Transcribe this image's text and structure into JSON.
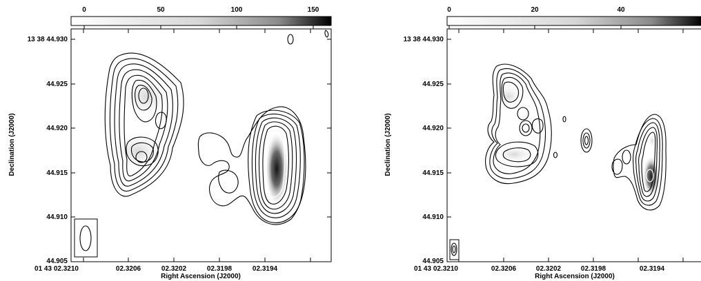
{
  "chart_data": [
    {
      "type": "heatmap",
      "xlabel": "Right Ascension (J2000)",
      "ylabel": "Declination (J2000)",
      "x_ticks": [
        "01 43 02.3210",
        "02.3206",
        "02.3202",
        "02.3198",
        "02.3194"
      ],
      "y_ticks": [
        "44.905",
        "44.910",
        "44.915",
        "44.920",
        "44.925",
        "13 38 44.930"
      ],
      "colorbar_ticks": [
        "0",
        "50",
        "100",
        "150"
      ],
      "colorbar_range": [
        0,
        160
      ],
      "colormap": "grayscale",
      "contours": true
    },
    {
      "type": "heatmap",
      "xlabel": "Right Ascension (J2000)",
      "ylabel": "Declination (J2000)",
      "x_ticks": [
        "01 43 02.3210",
        "02.3206",
        "02.3202",
        "02.3198",
        "02.3194"
      ],
      "y_ticks": [
        "44.905",
        "44.910",
        "44.915",
        "44.920",
        "44.925",
        "13 38 44.930"
      ],
      "colorbar_ticks": [
        "0",
        "20",
        "40"
      ],
      "colorbar_range": [
        0,
        58
      ],
      "colormap": "grayscale",
      "contours": true
    }
  ]
}
